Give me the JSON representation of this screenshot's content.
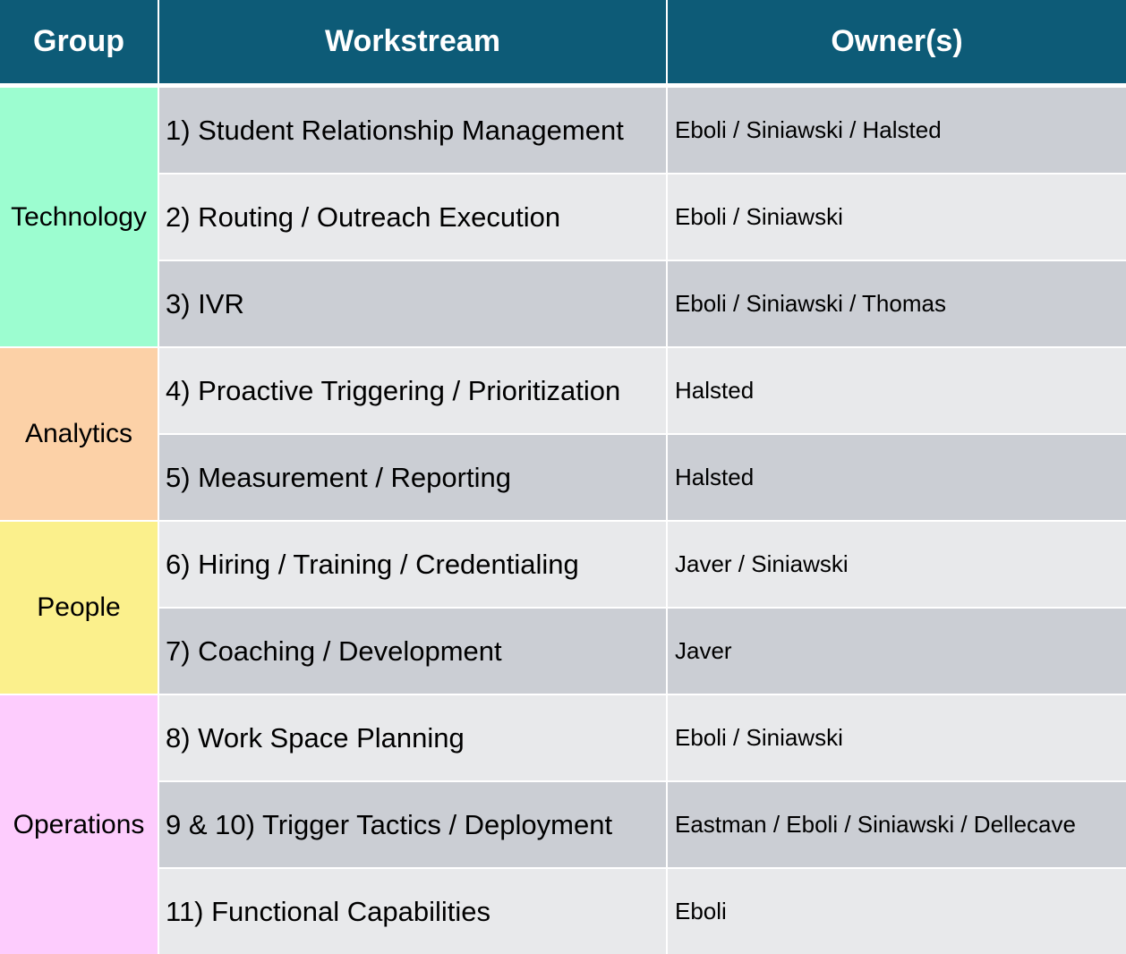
{
  "header": {
    "group": "Group",
    "workstream": "Workstream",
    "owners": "Owner(s)"
  },
  "colors": {
    "header_bg": "#0d5b77",
    "row_dark": "#cbced4",
    "row_light": "#e8e9eb",
    "technology": "#9cfdd0",
    "analytics": "#fcd1a7",
    "people": "#fbf08c",
    "operations": "#fdccfd"
  },
  "groups": [
    {
      "name": "Technology",
      "color": "#9cfdd0",
      "rows": [
        {
          "workstream": "1) Student Relationship Management",
          "owners": "Eboli / Siniawski / Halsted",
          "shade": "dark"
        },
        {
          "workstream": "2) Routing / Outreach Execution",
          "owners": "Eboli / Siniawski",
          "shade": "light"
        },
        {
          "workstream": "3) IVR",
          "owners": "Eboli / Siniawski / Thomas",
          "shade": "dark"
        }
      ]
    },
    {
      "name": "Analytics",
      "color": "#fcd1a7",
      "rows": [
        {
          "workstream": "4) Proactive Triggering / Prioritization",
          "owners": "Halsted",
          "shade": "light"
        },
        {
          "workstream": "5) Measurement / Reporting",
          "owners": "Halsted",
          "shade": "dark"
        }
      ]
    },
    {
      "name": "People",
      "color": "#fbf08c",
      "rows": [
        {
          "workstream": "6) Hiring / Training / Credentialing",
          "owners": "Javer / Siniawski",
          "shade": "light"
        },
        {
          "workstream": "7) Coaching / Development",
          "owners": "Javer",
          "shade": "dark"
        }
      ]
    },
    {
      "name": "Operations",
      "color": "#fdccfd",
      "rows": [
        {
          "workstream": "8) Work Space Planning",
          "owners": "Eboli / Siniawski",
          "shade": "light"
        },
        {
          "workstream": "9 & 10) Trigger Tactics / Deployment",
          "owners": "Eastman / Eboli / Siniawski / Dellecave",
          "shade": "dark"
        },
        {
          "workstream": "11) Functional Capabilities",
          "owners": "Eboli",
          "shade": "light"
        }
      ]
    }
  ]
}
